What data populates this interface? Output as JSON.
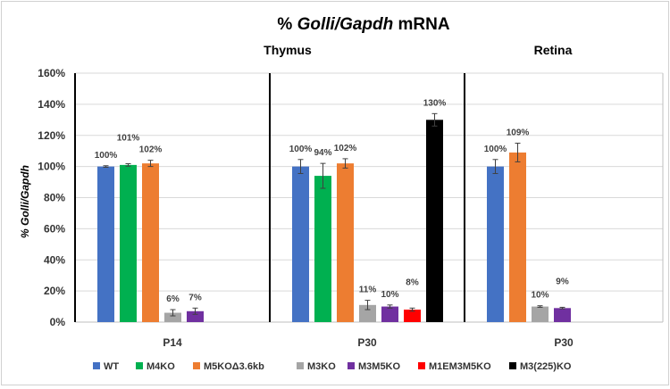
{
  "chart_data": {
    "type": "bar",
    "title_prefix": "% ",
    "title_italic": "Golli/Gapdh",
    "title_suffix": " mRNA",
    "ylabel_prefix": "% ",
    "ylabel_italic": "Golli/Gapdh",
    "ylim": [
      0,
      160
    ],
    "yticks": [
      0,
      20,
      40,
      60,
      80,
      100,
      120,
      140,
      160
    ],
    "ytick_suffix": "%",
    "grid": true,
    "legend_position": "bottom",
    "tissues": [
      {
        "label": "Thymus",
        "span_panels": [
          0,
          1
        ]
      },
      {
        "label": "Retina",
        "span_panels": [
          2
        ]
      }
    ],
    "series": [
      {
        "name": "WT",
        "color": "#4472C4"
      },
      {
        "name": "M4KO",
        "color": "#00B050"
      },
      {
        "name": "M5KOΔ3.6kb",
        "color": "#ED7D31"
      },
      {
        "name": "M3KO",
        "color": "#A5A5A5"
      },
      {
        "name": "M3M5KO",
        "color": "#7030A0"
      },
      {
        "name": "M1EM3M5KO",
        "color": "#FF0000"
      },
      {
        "name": "M3(225)KO",
        "color": "#000000"
      }
    ],
    "panels": [
      {
        "category": "P14",
        "bars": [
          {
            "series": 0,
            "value": 100,
            "error": 0.5,
            "label": "100%"
          },
          {
            "series": 1,
            "value": 101,
            "error": 0.8,
            "label": "101%"
          },
          {
            "series": 2,
            "value": 102,
            "error": 2,
            "label": "102%"
          },
          {
            "series": 3,
            "value": 6,
            "error": 2,
            "label": "6%"
          },
          {
            "series": 4,
            "value": 7,
            "error": 2,
            "label": "7%"
          }
        ]
      },
      {
        "category": "P30",
        "bars": [
          {
            "series": 0,
            "value": 100,
            "error": 4.5,
            "label": "100%"
          },
          {
            "series": 1,
            "value": 94,
            "error": 8,
            "label": "94%"
          },
          {
            "series": 2,
            "value": 102,
            "error": 3,
            "label": "102%"
          },
          {
            "series": 3,
            "value": 11,
            "error": 3,
            "label": "11%"
          },
          {
            "series": 4,
            "value": 10,
            "error": 1,
            "label": "10%"
          },
          {
            "series": 5,
            "value": 8,
            "error": 1,
            "label": "8%"
          },
          {
            "series": 6,
            "value": 130,
            "error": 4,
            "label": "130%"
          }
        ]
      },
      {
        "category": "P30",
        "bars": [
          {
            "series": 0,
            "value": 100,
            "error": 4.5,
            "label": "100%"
          },
          {
            "series": 2,
            "value": 109,
            "error": 6,
            "label": "109%"
          },
          {
            "series": 3,
            "value": 10,
            "error": 0.5,
            "label": "10%"
          },
          {
            "series": 4,
            "value": 9,
            "error": 0.5,
            "label": "9%"
          }
        ]
      }
    ]
  }
}
